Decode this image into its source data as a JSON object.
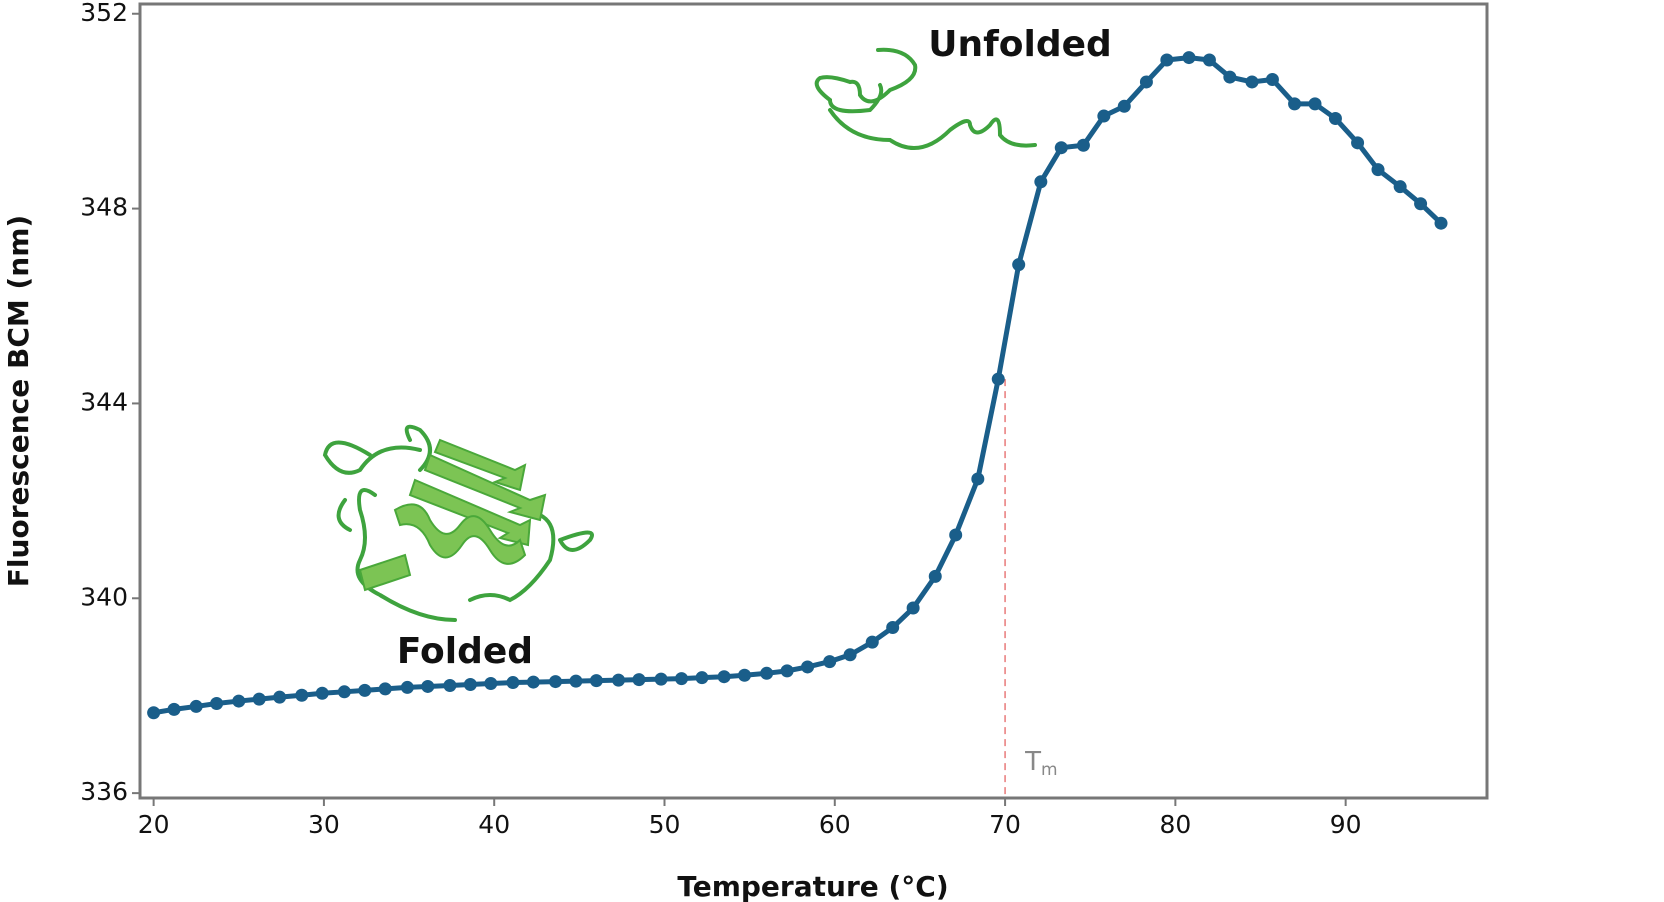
{
  "chart_data": {
    "type": "line",
    "x_label": "Temperature (°C)",
    "y_label": "Fluorescence BCM (nm)",
    "xlim": [
      19.2,
      98.3
    ],
    "ylim": [
      335.9,
      352.2
    ],
    "xticks": [
      20,
      30,
      40,
      50,
      60,
      70,
      80,
      90
    ],
    "yticks": [
      336,
      340,
      344,
      348,
      352
    ],
    "series": [
      {
        "color": "#1a5e8a",
        "x": [
          20.0,
          21.2,
          22.5,
          23.7,
          25.0,
          26.2,
          27.4,
          28.7,
          29.9,
          31.2,
          32.4,
          33.6,
          34.9,
          36.1,
          37.4,
          38.6,
          39.8,
          41.1,
          42.3,
          43.6,
          44.8,
          46.0,
          47.3,
          48.5,
          49.8,
          51.0,
          52.2,
          53.5,
          54.7,
          56.0,
          57.2,
          58.4,
          59.7,
          60.9,
          62.2,
          63.4,
          64.6,
          65.9,
          67.1,
          68.4,
          69.6,
          70.8,
          72.1,
          73.3,
          74.6,
          75.8,
          77.0,
          78.3,
          79.5,
          80.8,
          82.0,
          83.2,
          84.5,
          85.7,
          87.0,
          88.2,
          89.4,
          90.7,
          91.9,
          93.2,
          94.4,
          95.6
        ],
        "values": [
          337.65,
          337.72,
          337.78,
          337.84,
          337.89,
          337.93,
          337.97,
          338.01,
          338.05,
          338.08,
          338.11,
          338.14,
          338.17,
          338.19,
          338.21,
          338.23,
          338.25,
          338.27,
          338.28,
          338.29,
          338.3,
          338.31,
          338.32,
          338.33,
          338.34,
          338.35,
          338.37,
          338.39,
          338.42,
          338.46,
          338.51,
          338.59,
          338.7,
          338.84,
          339.1,
          339.4,
          339.8,
          340.45,
          341.3,
          342.45,
          344.5,
          346.85,
          348.55,
          349.25,
          349.3,
          349.9,
          350.1,
          350.6,
          351.05,
          351.1,
          351.05,
          350.7,
          350.6,
          350.65,
          350.15,
          350.15,
          349.85,
          349.35,
          348.8,
          348.45,
          348.1,
          347.7
        ]
      }
    ],
    "tm": {
      "value": 70,
      "label": "T",
      "sub": "m",
      "color": "#e87a7a"
    },
    "annotations": {
      "folded": "Folded",
      "unfolded": "Unfolded"
    }
  }
}
